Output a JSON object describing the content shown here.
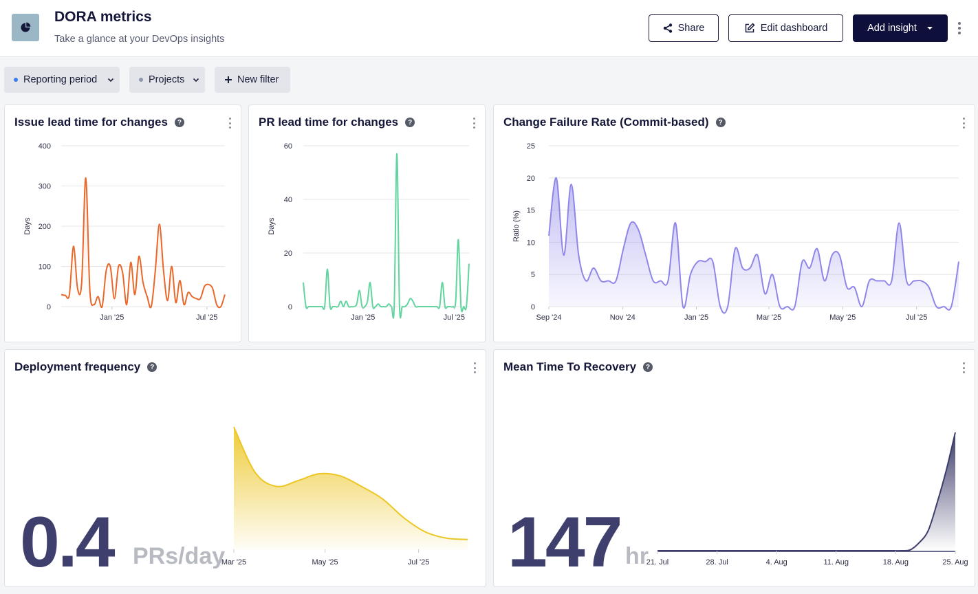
{
  "header": {
    "title": "DORA metrics",
    "subtitle": "Take a glance at your DevOps insights",
    "share_label": "Share",
    "edit_label": "Edit dashboard",
    "add_label": "Add insight"
  },
  "filters": [
    {
      "label": "Reporting period",
      "dot_color": "#3d7bf0"
    },
    {
      "label": "Projects",
      "dot_color": "#8f96a8"
    },
    {
      "label": "New filter"
    }
  ],
  "cards": {
    "issue_lead": {
      "title": "Issue lead time for changes"
    },
    "pr_lead": {
      "title": "PR lead time for changes"
    },
    "cfr": {
      "title": "Change Failure Rate (Commit-based)"
    },
    "deploy": {
      "title": "Deployment frequency",
      "value": "0.4",
      "unit": "PRs/day"
    },
    "mttr": {
      "title": "Mean Time To Recovery",
      "value": "147",
      "unit": "hr"
    }
  },
  "chart_data": [
    {
      "id": "issue_lead",
      "type": "area",
      "color": "#e8672a",
      "ylabel": "Days",
      "ylim": [
        0,
        400
      ],
      "yticks": [
        0,
        100,
        200,
        300,
        400
      ],
      "xticks": [
        {
          "label": "Jan '25",
          "t": 0.31
        },
        {
          "label": "Jul '25",
          "t": 0.89
        }
      ],
      "values": [
        30,
        28,
        30,
        150,
        45,
        60,
        320,
        40,
        5,
        25,
        0,
        90,
        100,
        20,
        100,
        85,
        5,
        110,
        30,
        125,
        60,
        25,
        0,
        90,
        205,
        90,
        15,
        100,
        10,
        65,
        5,
        35,
        25,
        20,
        20,
        50,
        55,
        45,
        5,
        0,
        30
      ]
    },
    {
      "id": "pr_lead",
      "type": "area",
      "color": "#63d39f",
      "ylabel": "Days",
      "ylim": [
        0,
        60
      ],
      "yticks": [
        0,
        20,
        40,
        60
      ],
      "xticks": [
        {
          "label": "Jan '25",
          "t": 0.36
        },
        {
          "label": "Jul '25",
          "t": 0.91
        }
      ],
      "values": [
        9,
        0,
        0,
        0,
        0,
        0,
        0,
        0,
        0,
        14,
        0,
        0,
        0,
        0,
        2,
        0,
        2,
        0,
        0,
        0,
        1,
        6,
        0,
        0,
        2,
        9,
        0,
        0,
        1,
        0,
        0,
        0,
        1,
        0,
        0,
        57,
        0,
        0,
        0,
        1,
        3,
        2,
        0,
        0,
        0,
        0,
        0,
        0,
        0,
        0,
        0,
        0,
        9,
        0,
        0,
        0,
        0,
        2,
        25,
        0,
        0,
        0,
        16
      ]
    },
    {
      "id": "cfr",
      "type": "area",
      "color": "#8e86e8",
      "ylabel": "Ratio (%)",
      "ylim": [
        0,
        25
      ],
      "yticks": [
        0,
        5,
        10,
        15,
        20,
        25
      ],
      "xticks": [
        {
          "label": "Sep '24",
          "t": 0.0
        },
        {
          "label": "Nov '24",
          "t": 0.18
        },
        {
          "label": "Jan '25",
          "t": 0.36
        },
        {
          "label": "Mar '25",
          "t": 0.537
        },
        {
          "label": "May '25",
          "t": 0.717
        },
        {
          "label": "Jul '25",
          "t": 0.897
        }
      ],
      "values": [
        11,
        20,
        8,
        19,
        8,
        4,
        6,
        4,
        4,
        4,
        9,
        13,
        12,
        8,
        4,
        4,
        4,
        13,
        0,
        5,
        7,
        7,
        7,
        0,
        0,
        9,
        6,
        6,
        8,
        2,
        5,
        0,
        0,
        0,
        7,
        6,
        9,
        4,
        8,
        8,
        3,
        3,
        0,
        4,
        4,
        4,
        4,
        13,
        4,
        4,
        4,
        3,
        0,
        0,
        0,
        7
      ]
    },
    {
      "id": "deploy",
      "type": "area",
      "color": "#ecc624",
      "xticks": [
        {
          "label": "Mar '25",
          "t": 0.0
        },
        {
          "label": "May '25",
          "t": 0.39
        },
        {
          "label": "Jul '25",
          "t": 0.79
        }
      ],
      "values": [
        1.75,
        1.1,
        0.9,
        0.98,
        1.08,
        1.05,
        0.9,
        0.72,
        0.45,
        0.25,
        0.16,
        0.14
      ]
    },
    {
      "id": "mttr",
      "type": "area",
      "color": "#3d3d6b",
      "xticks": [
        {
          "label": "21. Jul",
          "t": 0.0
        },
        {
          "label": "28. Jul",
          "t": 0.2
        },
        {
          "label": "4. Aug",
          "t": 0.4
        },
        {
          "label": "11. Aug",
          "t": 0.6
        },
        {
          "label": "18. Aug",
          "t": 0.8
        },
        {
          "label": "25. Aug",
          "t": 1.0
        }
      ],
      "values": [
        0,
        0,
        0,
        0,
        0,
        0,
        0,
        0,
        0,
        0,
        0,
        0,
        0,
        0,
        0,
        0,
        0,
        0,
        0,
        0,
        0,
        0,
        0,
        0,
        0,
        0,
        0,
        0,
        1,
        10,
        25,
        60,
        100,
        147
      ]
    }
  ]
}
